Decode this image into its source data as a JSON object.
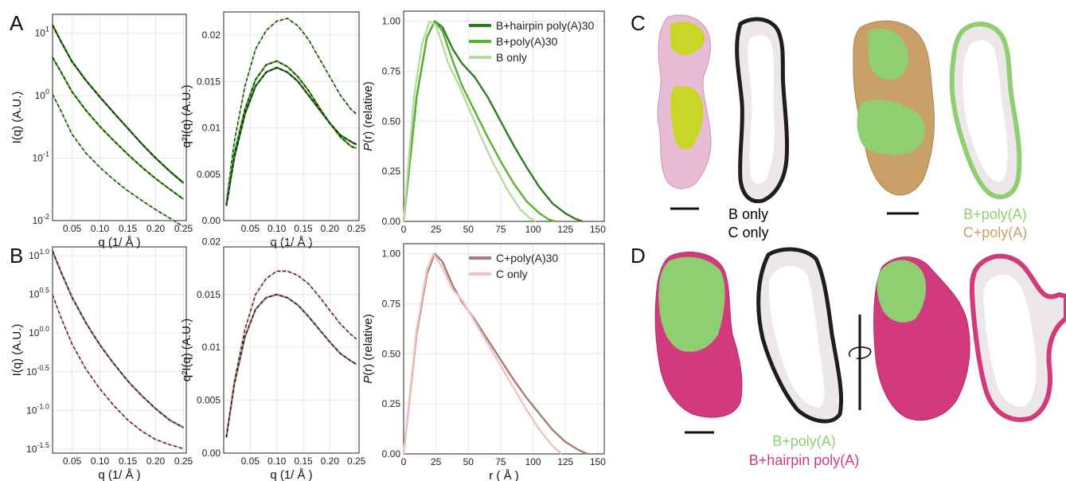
{
  "panel_letters": {
    "A": "A",
    "B": "B",
    "C": "C",
    "D": "D"
  },
  "colors": {
    "green_dark": "#2e7d1e",
    "green_mid": "#5cb030",
    "green_light": "#b5dca0",
    "pink_dark": "#a37e78",
    "pink_light": "#f2c2c2",
    "fit": "#111111",
    "lime": "#c8d62a",
    "lilac": "#e8bcd4",
    "tan": "#c9a068",
    "light_green": "#8fcf72",
    "magenta": "#d3397d"
  },
  "chart_data": [
    {
      "id": "A1",
      "type": "line",
      "xlabel": "q (1/ Å )",
      "ylabel": "I(q) (A.U.)",
      "yscale": "log",
      "xlim": [
        0.015,
        0.255
      ],
      "ylim": [
        0.01,
        20
      ],
      "xticks": [
        0.05,
        0.1,
        0.15,
        0.2,
        0.25
      ],
      "xtick_labels": [
        "0.05",
        "0.10",
        "0.15",
        "0.20",
        "0.25"
      ],
      "yticks": [
        0.01,
        0.1,
        1,
        10
      ],
      "ytick_labels": [
        {
          "base": "10",
          "exp": "-2"
        },
        {
          "base": "10",
          "exp": "-1"
        },
        {
          "base": "10",
          "exp": "0"
        },
        {
          "base": "10",
          "exp": "1"
        }
      ],
      "series": [
        {
          "color_key": "green_dark",
          "x": [
            0.015,
            0.03,
            0.05,
            0.075,
            0.1,
            0.125,
            0.15,
            0.175,
            0.2,
            0.225,
            0.25
          ],
          "y": [
            13.5,
            7.4,
            3.5,
            1.75,
            0.95,
            0.53,
            0.3,
            0.17,
            0.1,
            0.062,
            0.04
          ]
        },
        {
          "color_key": "green_mid",
          "x": [
            0.015,
            0.03,
            0.05,
            0.075,
            0.1,
            0.125,
            0.15,
            0.175,
            0.2,
            0.225,
            0.25
          ],
          "y": [
            4.1,
            2.4,
            1.15,
            0.58,
            0.32,
            0.19,
            0.115,
            0.072,
            0.047,
            0.032,
            0.022
          ]
        },
        {
          "color_key": "green_light",
          "x": [
            0.015,
            0.03,
            0.05,
            0.075,
            0.1,
            0.125,
            0.15,
            0.175,
            0.2,
            0.225,
            0.25
          ],
          "y": [
            1.05,
            0.57,
            0.24,
            0.12,
            0.071,
            0.045,
            0.03,
            0.021,
            0.015,
            0.011,
            0.008
          ]
        }
      ]
    },
    {
      "id": "A2",
      "type": "line",
      "xlabel": "q (1/ Å )",
      "ylabel": "q²I(q) (A.U.)",
      "xlim": [
        0.0,
        0.255
      ],
      "ylim": [
        0.0,
        0.0225
      ],
      "xticks": [
        0.05,
        0.1,
        0.15,
        0.2,
        0.25
      ],
      "xtick_labels": [
        "0.05",
        "0.10",
        "0.15",
        "0.20",
        "0.25"
      ],
      "yticks": [
        0.0,
        0.005,
        0.01,
        0.015,
        0.02
      ],
      "ytick_labels": [
        "0.00",
        "0.005",
        "0.01",
        "0.015",
        "0.02"
      ],
      "series": [
        {
          "color_key": "green_light",
          "x": [
            0.005,
            0.02,
            0.04,
            0.06,
            0.08,
            0.1,
            0.12,
            0.14,
            0.16,
            0.18,
            0.2,
            0.22,
            0.24,
            0.25
          ],
          "y": [
            0.002,
            0.0085,
            0.0145,
            0.0185,
            0.0205,
            0.0215,
            0.0218,
            0.021,
            0.0195,
            0.0175,
            0.0155,
            0.0135,
            0.012,
            0.0115
          ]
        },
        {
          "color_key": "green_mid",
          "x": [
            0.005,
            0.02,
            0.04,
            0.06,
            0.08,
            0.1,
            0.12,
            0.14,
            0.16,
            0.18,
            0.2,
            0.22,
            0.24,
            0.25
          ],
          "y": [
            0.0017,
            0.0072,
            0.012,
            0.0152,
            0.0168,
            0.0172,
            0.0166,
            0.0155,
            0.014,
            0.0122,
            0.0105,
            0.009,
            0.008,
            0.0078
          ]
        },
        {
          "color_key": "green_dark",
          "x": [
            0.005,
            0.02,
            0.04,
            0.06,
            0.08,
            0.1,
            0.12,
            0.14,
            0.16,
            0.18,
            0.2,
            0.22,
            0.24,
            0.25
          ],
          "y": [
            0.0016,
            0.0068,
            0.0115,
            0.0145,
            0.016,
            0.0165,
            0.016,
            0.015,
            0.0135,
            0.012,
            0.0105,
            0.0092,
            0.0085,
            0.0082
          ]
        }
      ]
    },
    {
      "id": "A3",
      "type": "line",
      "xlabel": "",
      "ylabel": "P(r) (relative)",
      "xlim": [
        0,
        155
      ],
      "ylim": [
        0,
        1.05
      ],
      "xticks": [
        0,
        25,
        50,
        75,
        100,
        125,
        150
      ],
      "xtick_labels": [
        "0",
        "25",
        "50",
        "75",
        "100",
        "125",
        "150"
      ],
      "yticks": [
        0,
        0.25,
        0.5,
        0.75,
        1.0
      ],
      "ytick_labels": [
        "0.00",
        "0.25",
        "0.50",
        "0.75",
        "1.00"
      ],
      "legend": [
        "B+hairpin poly(A)30",
        "B+poly(A)30",
        "B only"
      ],
      "series": [
        {
          "name": "B+hairpin poly(A)30",
          "color_key": "green_dark",
          "x": [
            0,
            10,
            18,
            24,
            30,
            38,
            45,
            55,
            65,
            75,
            85,
            95,
            105,
            115,
            125,
            132,
            138
          ],
          "y": [
            0,
            0.62,
            0.92,
            1.0,
            0.97,
            0.86,
            0.79,
            0.72,
            0.62,
            0.5,
            0.38,
            0.27,
            0.17,
            0.09,
            0.04,
            0.015,
            0.0
          ]
        },
        {
          "name": "B+poly(A)30",
          "color_key": "green_mid",
          "x": [
            0,
            10,
            18,
            24,
            30,
            38,
            45,
            55,
            65,
            75,
            85,
            95,
            105,
            112,
            117
          ],
          "y": [
            0,
            0.62,
            0.92,
            1.0,
            0.95,
            0.8,
            0.68,
            0.55,
            0.42,
            0.3,
            0.19,
            0.1,
            0.04,
            0.01,
            0.0
          ]
        },
        {
          "name": "B only",
          "color_key": "green_light",
          "x": [
            0,
            8,
            14,
            20,
            25,
            30,
            35,
            42,
            50,
            60,
            70,
            80,
            90,
            97,
            102
          ],
          "y": [
            0,
            0.62,
            0.88,
            1.0,
            0.98,
            0.88,
            0.78,
            0.69,
            0.57,
            0.42,
            0.28,
            0.16,
            0.06,
            0.02,
            0.0
          ]
        }
      ]
    },
    {
      "id": "B1",
      "type": "line",
      "xlabel": "q (1/ Å )",
      "ylabel": "I(q) (A.U.)",
      "yscale": "log",
      "xlim": [
        0.015,
        0.255
      ],
      "ylim": [
        0.028,
        13
      ],
      "xticks": [
        0.05,
        0.1,
        0.15,
        0.2,
        0.25
      ],
      "xtick_labels": [
        "0.05",
        "0.10",
        "0.15",
        "0.20",
        "0.25"
      ],
      "yticks": [
        0.0316,
        0.1,
        0.316,
        1,
        3.16,
        10
      ],
      "ytick_labels": [
        {
          "base": "10",
          "exp": "-1.5"
        },
        {
          "base": "10",
          "exp": "-1.0"
        },
        {
          "base": "10",
          "exp": "-0.5"
        },
        {
          "base": "10",
          "exp": "0.0"
        },
        {
          "base": "10",
          "exp": "0.5"
        },
        {
          "base": "10",
          "exp": "1.0"
        }
      ],
      "series": [
        {
          "color_key": "pink_dark",
          "x": [
            0.015,
            0.03,
            0.05,
            0.075,
            0.1,
            0.125,
            0.15,
            0.175,
            0.2,
            0.225,
            0.25
          ],
          "y": [
            11.5,
            6.2,
            2.9,
            1.35,
            0.7,
            0.4,
            0.24,
            0.155,
            0.105,
            0.075,
            0.06
          ]
        },
        {
          "color_key": "pink_light",
          "x": [
            0.015,
            0.03,
            0.05,
            0.075,
            0.1,
            0.125,
            0.15,
            0.175,
            0.2,
            0.225,
            0.25
          ],
          "y": [
            3.1,
            1.6,
            0.72,
            0.34,
            0.19,
            0.115,
            0.075,
            0.054,
            0.042,
            0.036,
            0.032
          ]
        }
      ]
    },
    {
      "id": "B2",
      "type": "line",
      "xlabel": "q (1/ Å )",
      "ylabel": "q²I(q) (A.U.)",
      "xlim": [
        0.0,
        0.255
      ],
      "ylim": [
        0.0,
        0.0195
      ],
      "xticks": [
        0.05,
        0.1,
        0.15,
        0.2,
        0.25
      ],
      "xtick_labels": [
        "0.05",
        "0.10",
        "0.15",
        "0.20",
        "0.25"
      ],
      "yticks": [
        0.0,
        0.005,
        0.01,
        0.015,
        0.02
      ],
      "ytick_labels": [
        "0.00",
        "0.005",
        "0.01",
        "0.015",
        "0.02"
      ],
      "series": [
        {
          "color_key": "pink_light",
          "x": [
            0.005,
            0.02,
            0.04,
            0.06,
            0.08,
            0.1,
            0.12,
            0.14,
            0.16,
            0.18,
            0.2,
            0.22,
            0.24,
            0.25
          ],
          "y": [
            0.0015,
            0.0068,
            0.0117,
            0.015,
            0.0165,
            0.0172,
            0.0172,
            0.0168,
            0.016,
            0.0148,
            0.0135,
            0.0122,
            0.0112,
            0.0108
          ]
        },
        {
          "color_key": "pink_dark",
          "x": [
            0.005,
            0.02,
            0.04,
            0.06,
            0.08,
            0.1,
            0.12,
            0.14,
            0.16,
            0.18,
            0.2,
            0.22,
            0.24,
            0.25
          ],
          "y": [
            0.0015,
            0.0065,
            0.011,
            0.0136,
            0.0147,
            0.015,
            0.0147,
            0.014,
            0.0129,
            0.0117,
            0.0105,
            0.0094,
            0.0087,
            0.0084
          ]
        }
      ]
    },
    {
      "id": "B3",
      "type": "line",
      "xlabel": "r ( Å )",
      "ylabel": "P(r) (relative)",
      "xlim": [
        0,
        155
      ],
      "ylim": [
        0,
        1.05
      ],
      "xticks": [
        0,
        25,
        50,
        75,
        100,
        125,
        150
      ],
      "xtick_labels": [
        "0",
        "25",
        "50",
        "75",
        "100",
        "125",
        "150"
      ],
      "yticks": [
        0,
        0.25,
        0.5,
        0.75,
        1.0
      ],
      "ytick_labels": [
        "0.00",
        "0.25",
        "0.50",
        "0.75",
        "1.00"
      ],
      "legend": [
        "C+poly(A)30",
        "C only"
      ],
      "series": [
        {
          "name": "C+poly(A)30",
          "color_key": "pink_dark",
          "x": [
            0,
            10,
            18,
            24,
            30,
            38,
            45,
            55,
            65,
            75,
            85,
            95,
            105,
            115,
            125,
            135,
            142
          ],
          "y": [
            0,
            0.6,
            0.9,
            1.0,
            0.96,
            0.84,
            0.76,
            0.67,
            0.57,
            0.47,
            0.37,
            0.28,
            0.2,
            0.12,
            0.06,
            0.02,
            0.0
          ]
        },
        {
          "name": "C only",
          "color_key": "pink_light",
          "x": [
            0,
            10,
            18,
            23,
            30,
            38,
            45,
            55,
            65,
            75,
            85,
            95,
            105,
            115,
            122
          ],
          "y": [
            0,
            0.62,
            0.92,
            1.0,
            0.93,
            0.82,
            0.77,
            0.66,
            0.55,
            0.44,
            0.33,
            0.22,
            0.12,
            0.04,
            0.0
          ]
        }
      ]
    }
  ],
  "panel_C": {
    "label_left_1": "B only",
    "label_left_2": "C only",
    "label_right_1": "B+poly(A)",
    "label_right_2": "C+poly(A)"
  },
  "panel_D": {
    "label_1": "B+poly(A)",
    "label_2": "B+hairpin poly(A)"
  }
}
